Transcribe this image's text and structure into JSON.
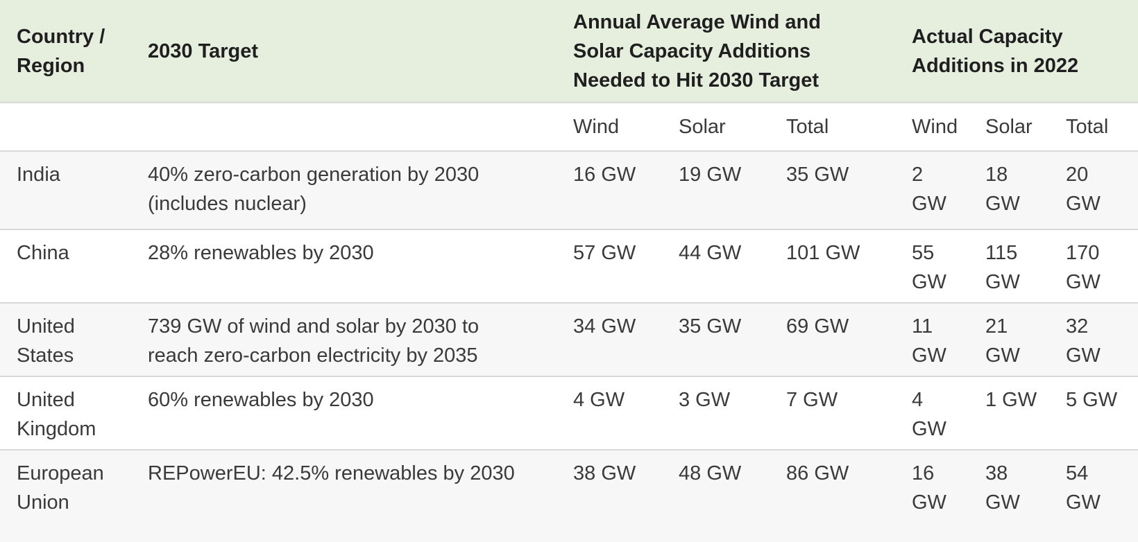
{
  "table": {
    "header": {
      "country": "Country /\nRegion",
      "target": "2030 Target",
      "needed_group": "Annual Average Wind and\nSolar Capacity Additions\nNeeded to Hit 2030 Target",
      "actual_group": "Actual Capacity\nAdditions in 2022"
    },
    "subheader": {
      "needed_wind": "Wind",
      "needed_solar": "Solar",
      "needed_total": "Total",
      "actual_wind": "Wind",
      "actual_solar": "Solar",
      "actual_total": "Total"
    },
    "rows": [
      {
        "country": "India",
        "target": "40% zero-carbon generation by 2030\n(includes nuclear)",
        "needed_wind": "16 GW",
        "needed_solar": "19 GW",
        "needed_total": "35 GW",
        "actual_wind": "2\nGW",
        "actual_solar": "18\nGW",
        "actual_total": "20\nGW"
      },
      {
        "country": "China",
        "target": "28% renewables by 2030",
        "needed_wind": "57 GW",
        "needed_solar": "44 GW",
        "needed_total": "101 GW",
        "actual_wind": "55\nGW",
        "actual_solar": "115\nGW",
        "actual_total": "170\nGW"
      },
      {
        "country": "United\nStates",
        "target": "739 GW of wind and solar by 2030 to\nreach zero-carbon electricity by 2035",
        "needed_wind": "34 GW",
        "needed_solar": "35 GW",
        "needed_total": "69 GW",
        "actual_wind": "11\nGW",
        "actual_solar": "21\nGW",
        "actual_total": "32\nGW"
      },
      {
        "country": "United\nKingdom",
        "target": "60% renewables by 2030",
        "needed_wind": "4 GW",
        "needed_solar": "3 GW",
        "needed_total": "7 GW",
        "actual_wind": "4\nGW",
        "actual_solar": "1 GW",
        "actual_total": "5 GW"
      },
      {
        "country": "European\nUnion",
        "target": "REPowerEU: 42.5% renewables by 2030",
        "needed_wind": "38 GW",
        "needed_solar": "48 GW",
        "needed_total": "86 GW",
        "actual_wind": "16\nGW",
        "actual_solar": "38\nGW",
        "actual_total": "54\nGW"
      }
    ],
    "colors": {
      "header_bg": "#e6eedd",
      "alt_row_bg": "#f7f7f7",
      "divider": "#d9d9d9",
      "header_text": "#1f1f1f",
      "body_text": "#3a3a3a"
    }
  }
}
